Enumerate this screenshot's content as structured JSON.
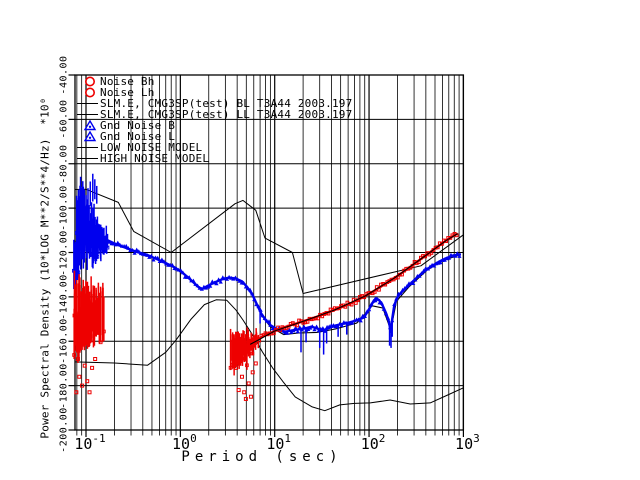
{
  "colors": {
    "blue": "#0000ee",
    "red": "#ee0000",
    "grid": "#000000",
    "background": "#ffffff"
  },
  "legend": {
    "items": [
      {
        "symbol": "red-circle",
        "label": "Noise Bh"
      },
      {
        "symbol": "red-circle",
        "label": "Noise Lh"
      },
      {
        "symbol": "black-line",
        "label": "SLM.E, CMG3SP(test) BL T3A44 2003.197"
      },
      {
        "symbol": "black-line",
        "label": "SLM.E, CMG3SP(test) LL T3A44 2003.197"
      },
      {
        "symbol": "blue-triangle",
        "label": "Gnd Noise B"
      },
      {
        "symbol": "blue-triangle",
        "label": "Gnd Noise L"
      },
      {
        "symbol": "black-line",
        "label": "LOW NOISE MODEL"
      },
      {
        "symbol": "black-line",
        "label": "HIGH NOISE MODEL"
      }
    ]
  },
  "axes": {
    "x": {
      "label": "Period (sec)",
      "scale": "log",
      "ticks": [
        {
          "base": "10",
          "exp": "-1"
        },
        {
          "base": "10",
          "exp": "0"
        },
        {
          "base": "10",
          "exp": "1"
        },
        {
          "base": "10",
          "exp": "2"
        },
        {
          "base": "10",
          "exp": "3"
        }
      ]
    },
    "y": {
      "label": "Power Spectral Density (10*LOG M**2/S**4/Hz)  *10⁰",
      "tick_labels": [
        "-40.00",
        "-60.00",
        "-80.00",
        "-100.00",
        "-120.00",
        "-140.00",
        "-160.00",
        "-180.00",
        "-200.00"
      ]
    }
  },
  "chart_data": {
    "type": "scatter",
    "title": "",
    "xlabel": "Period (sec)",
    "ylabel": "Power Spectral Density (10*LOG M**2/S**4/Hz) *10^0",
    "xscale": "log",
    "xlim": [
      0.0757,
      1000
    ],
    "ylim": [
      -200,
      -40
    ],
    "grid": "full log grid, horizontal lines every 20 dB",
    "legend_position": "top-left inside plot",
    "series": [
      {
        "name": "Gnd Noise B",
        "color": "#0000ee",
        "marker": "triangle",
        "style": "band",
        "points": [
          [
            0.082,
            -104
          ],
          [
            0.09,
            -107
          ],
          [
            0.1,
            -109
          ],
          [
            0.115,
            -111
          ],
          [
            0.135,
            -112.5
          ],
          [
            0.16,
            -114
          ],
          [
            0.19,
            -115.5
          ],
          [
            0.23,
            -117
          ],
          [
            0.28,
            -118.3
          ],
          [
            0.35,
            -119.8
          ],
          [
            0.44,
            -121
          ],
          [
            0.55,
            -122.8
          ],
          [
            0.68,
            -124.5
          ],
          [
            0.85,
            -126.5
          ],
          [
            1.05,
            -129
          ],
          [
            1.3,
            -132.5
          ],
          [
            1.55,
            -135.5
          ],
          [
            1.7,
            -136.5
          ],
          [
            1.95,
            -135
          ],
          [
            2.3,
            -133.5
          ],
          [
            2.8,
            -132
          ],
          [
            3.3,
            -131.3
          ],
          [
            3.9,
            -131.8
          ],
          [
            4.5,
            -133
          ],
          [
            5.1,
            -135.5
          ],
          [
            5.8,
            -139
          ],
          [
            6.5,
            -143.5
          ],
          [
            7.2,
            -147.5
          ],
          [
            8.2,
            -151
          ],
          [
            9.0,
            -152.5
          ]
        ]
      },
      {
        "name": "Gnd Noise L",
        "color": "#0000ee",
        "marker": "triangle",
        "style": "band",
        "points": [
          [
            9,
            -152.7
          ],
          [
            10.5,
            -154.5
          ],
          [
            12.5,
            -155.8
          ],
          [
            15,
            -155.2
          ],
          [
            18,
            -154.6
          ],
          [
            21,
            -154.2
          ],
          [
            24.5,
            -153.4
          ],
          [
            28,
            -154.2
          ],
          [
            32,
            -155.2
          ],
          [
            37,
            -154.2
          ],
          [
            44,
            -152.9
          ],
          [
            52,
            -152.2
          ],
          [
            62,
            -151.5
          ],
          [
            74,
            -150.6
          ],
          [
            88,
            -149.3
          ],
          [
            97,
            -146.5
          ],
          [
            108,
            -143
          ],
          [
            118,
            -140.6
          ],
          [
            128,
            -141.5
          ],
          [
            140,
            -144
          ],
          [
            152,
            -147.5
          ],
          [
            162,
            -151
          ],
          [
            170,
            -155.8
          ],
          [
            176,
            -150
          ],
          [
            184,
            -144.5
          ],
          [
            195,
            -141
          ],
          [
            210,
            -138.8
          ],
          [
            235,
            -136.8
          ],
          [
            265,
            -134.8
          ],
          [
            305,
            -132.2
          ],
          [
            355,
            -129.7
          ],
          [
            410,
            -127.6
          ],
          [
            470,
            -125.9
          ],
          [
            545,
            -124.3
          ],
          [
            630,
            -122.9
          ],
          [
            730,
            -121.8
          ],
          [
            840,
            -121.1
          ],
          [
            940,
            -120.8
          ]
        ]
      },
      {
        "name": "Noise Bh",
        "color": "#ee0000",
        "marker": "square",
        "style": "fuzz",
        "points": [
          [
            0.08,
            -141
          ],
          [
            0.09,
            -144
          ],
          [
            0.1,
            -146
          ],
          [
            0.11,
            -147
          ],
          [
            0.12,
            -146.5
          ],
          [
            0.135,
            -145
          ],
          [
            0.15,
            -143.5
          ]
        ]
      },
      {
        "name": "Noise Lh",
        "color": "#ee0000",
        "marker": "square",
        "style": "band",
        "points": [
          [
            3.7,
            -166.5
          ],
          [
            4.2,
            -164.8
          ],
          [
            4.8,
            -163.3
          ],
          [
            5.5,
            -161.4
          ],
          [
            6.3,
            -159.6
          ],
          [
            7.3,
            -158.1
          ],
          [
            8.5,
            -156.8
          ],
          [
            10,
            -155.4
          ],
          [
            12,
            -154
          ],
          [
            14.5,
            -152.9
          ],
          [
            17.5,
            -151.8
          ],
          [
            21,
            -150.7
          ],
          [
            25,
            -149.7
          ],
          [
            30,
            -148.5
          ],
          [
            36,
            -147.2
          ],
          [
            43,
            -145.9
          ],
          [
            52,
            -144.5
          ],
          [
            63,
            -143
          ],
          [
            76,
            -141.4
          ],
          [
            91,
            -139.6
          ],
          [
            109,
            -137.7
          ],
          [
            130,
            -135.7
          ],
          [
            156,
            -133.6
          ],
          [
            187,
            -131.4
          ],
          [
            224,
            -129.1
          ],
          [
            268,
            -126.8
          ],
          [
            321,
            -124.3
          ],
          [
            385,
            -121.8
          ],
          [
            461,
            -119.3
          ],
          [
            552,
            -116.9
          ],
          [
            661,
            -114.5
          ],
          [
            792,
            -112.4
          ],
          [
            870,
            -111.5
          ]
        ]
      },
      {
        "name": "SLM.E, CMG3SP(test) BL T3A44 2003.197",
        "color": "#000000",
        "style": "line",
        "width": 1.1,
        "points": [
          [
            7,
            -147.5
          ],
          [
            9,
            -153.5
          ],
          [
            12.5,
            -157
          ],
          [
            18,
            -156.3
          ],
          [
            28,
            -156
          ],
          [
            44,
            -154.5
          ],
          [
            74,
            -151.8
          ],
          [
            108,
            -144
          ],
          [
            140,
            -145
          ],
          [
            170,
            -155
          ],
          [
            195,
            -142
          ],
          [
            265,
            -135.5
          ],
          [
            410,
            -128
          ],
          [
            630,
            -123.3
          ],
          [
            940,
            -121
          ]
        ]
      },
      {
        "name": "SLM.E, CMG3SP(test) LL T3A44 2003.197",
        "color": "#000000",
        "style": "line",
        "width": 1.1,
        "points": [
          [
            5.5,
            -161.4
          ],
          [
            10,
            -155.4
          ],
          [
            21,
            -150.7
          ],
          [
            43,
            -145.9
          ],
          [
            91,
            -139.6
          ],
          [
            187,
            -131.4
          ],
          [
            385,
            -121.8
          ],
          [
            661,
            -114.5
          ],
          [
            870,
            -111.5
          ]
        ]
      },
      {
        "name": "LOW NOISE MODEL",
        "color": "#000000",
        "style": "line",
        "width": 1,
        "points": [
          [
            0.0757,
            -169.3
          ],
          [
            0.2,
            -169.8
          ],
          [
            0.45,
            -170.8
          ],
          [
            0.7,
            -165
          ],
          [
            0.9,
            -159.5
          ],
          [
            1.3,
            -150
          ],
          [
            1.8,
            -143.5
          ],
          [
            2.4,
            -141.3
          ],
          [
            3.1,
            -141.5
          ],
          [
            3.9,
            -146
          ],
          [
            4.6,
            -150.4
          ],
          [
            6,
            -158
          ],
          [
            7.4,
            -164.8
          ],
          [
            9.5,
            -172
          ],
          [
            12.3,
            -178.3
          ],
          [
            16.5,
            -185.1
          ],
          [
            25,
            -189.6
          ],
          [
            34,
            -191.3
          ],
          [
            49,
            -188.7
          ],
          [
            70,
            -188
          ],
          [
            103,
            -187.8
          ],
          [
            167,
            -186.5
          ],
          [
            273,
            -188.3
          ],
          [
            445,
            -187.8
          ],
          [
            700,
            -184
          ],
          [
            1000,
            -181
          ]
        ]
      },
      {
        "name": "HIGH NOISE MODEL",
        "color": "#000000",
        "style": "line",
        "width": 1,
        "points": [
          [
            0.0757,
            -91.6
          ],
          [
            0.1,
            -91.5
          ],
          [
            0.22,
            -97.4
          ],
          [
            0.32,
            -110.5
          ],
          [
            0.8,
            -120
          ],
          [
            3.8,
            -98
          ],
          [
            4.6,
            -96.5
          ],
          [
            6.3,
            -101
          ],
          [
            7.9,
            -113.5
          ],
          [
            15.4,
            -120
          ],
          [
            20,
            -138.5
          ],
          [
            354.8,
            -126
          ],
          [
            1000,
            -112
          ]
        ]
      }
    ],
    "clusters": [
      {
        "series": "Gnd Noise B",
        "color": "#0000ee",
        "t": [
          0.0757,
          0.082
        ],
        "center": [
          -124,
          -124
        ],
        "up": [
          11,
          11
        ],
        "down": [
          13,
          13
        ],
        "n": 10
      },
      {
        "series": "Gnd Noise B",
        "color": "#0000ee",
        "t": [
          0.08,
          0.17
        ],
        "center": [
          -106,
          -114.5
        ],
        "up": [
          22,
          4
        ],
        "down": [
          26,
          6
        ],
        "n": 55
      },
      {
        "series": "Gnd Noise B",
        "color": "#0000ee",
        "t": [
          0.084,
          0.105
        ],
        "center": [
          -103,
          -106
        ],
        "up": [
          9,
          7
        ],
        "down": [
          18,
          14
        ],
        "n": 25
      },
      {
        "series": "Noise Bh",
        "color": "#ee0000",
        "t": [
          0.076,
          0.155
        ],
        "center": [
          -145,
          -147
        ],
        "up": [
          16,
          12
        ],
        "down": [
          23,
          14
        ],
        "n": 60
      },
      {
        "series": "Noise Bh",
        "color": "#ee0000",
        "t": [
          0.076,
          0.12
        ],
        "center": [
          -152,
          -150
        ],
        "up": [
          8,
          6
        ],
        "down": [
          20,
          12
        ],
        "n": 25
      },
      {
        "series": "Noise Lh",
        "color": "#ee0000",
        "t": [
          3.4,
          6.6
        ],
        "center": [
          -162,
          -159.5
        ],
        "up": [
          7,
          4
        ],
        "down": [
          13,
          5
        ],
        "n": 45
      },
      {
        "series": "Noise Lh",
        "color": "#ee0000",
        "t": [
          3.6,
          5.2
        ],
        "center": [
          -166,
          -164
        ],
        "up": [
          5,
          4
        ],
        "down": [
          10,
          8
        ],
        "n": 20
      }
    ],
    "spikes": [
      {
        "color": "#0000ee",
        "t": 0.118,
        "from": -97,
        "to": -84.5
      },
      {
        "color": "#0000ee",
        "t": 0.111,
        "from": -99,
        "to": -88
      },
      {
        "color": "#0000ee",
        "t": 0.124,
        "from": -96,
        "to": -87
      },
      {
        "color": "#0000ee",
        "t": 0.13,
        "from": -98,
        "to": -90
      },
      {
        "color": "#0000ee",
        "t": 0.105,
        "from": -100,
        "to": -91
      },
      {
        "color": "#0000ee",
        "t": 19,
        "from": -154.6,
        "to": -165
      },
      {
        "color": "#0000ee",
        "t": 21.5,
        "from": -154.2,
        "to": -160.5
      },
      {
        "color": "#0000ee",
        "t": 30,
        "from": -155,
        "to": -163
      },
      {
        "color": "#0000ee",
        "t": 33,
        "from": -155.4,
        "to": -166
      },
      {
        "color": "#0000ee",
        "t": 35.5,
        "from": -154.8,
        "to": -161
      },
      {
        "color": "#0000ee",
        "t": 47,
        "from": -152.7,
        "to": -158
      },
      {
        "color": "#0000ee",
        "t": 58,
        "from": -151.8,
        "to": -157
      },
      {
        "color": "#0000ee",
        "t": 7.0,
        "from": -146,
        "to": -152
      },
      {
        "color": "#0000ee",
        "t": 165,
        "from": -152,
        "to": -162
      },
      {
        "color": "#0000ee",
        "t": 171,
        "from": -156,
        "to": -163
      },
      {
        "color": "#0000ee",
        "t": 176,
        "from": -150,
        "to": -158
      }
    ],
    "outlier_squares": [
      {
        "color": "#ee0000",
        "t": 0.079,
        "db": -183
      },
      {
        "color": "#ee0000",
        "t": 0.085,
        "db": -176
      },
      {
        "color": "#ee0000",
        "t": 0.091,
        "db": -180
      },
      {
        "color": "#ee0000",
        "t": 0.097,
        "db": -171
      },
      {
        "color": "#ee0000",
        "t": 0.103,
        "db": -178
      },
      {
        "color": "#ee0000",
        "t": 0.109,
        "db": -183
      },
      {
        "color": "#ee0000",
        "t": 0.116,
        "db": -172
      },
      {
        "color": "#ee0000",
        "t": 0.125,
        "db": -168
      },
      {
        "color": "#ee0000",
        "t": 0.082,
        "db": -168
      },
      {
        "color": "#ee0000",
        "t": 0.088,
        "db": -163
      },
      {
        "color": "#ee0000",
        "t": 3.9,
        "db": -172
      },
      {
        "color": "#ee0000",
        "t": 4.15,
        "db": -182
      },
      {
        "color": "#ee0000",
        "t": 4.5,
        "db": -176
      },
      {
        "color": "#ee0000",
        "t": 4.95,
        "db": -186
      },
      {
        "color": "#ee0000",
        "t": 5.3,
        "db": -179
      },
      {
        "color": "#ee0000",
        "t": 5.85,
        "db": -174
      },
      {
        "color": "#ee0000",
        "t": 6.3,
        "db": -170
      },
      {
        "color": "#ee0000",
        "t": 4.75,
        "db": -183
      },
      {
        "color": "#ee0000",
        "t": 4.3,
        "db": -169
      },
      {
        "color": "#ee0000",
        "t": 5.6,
        "db": -185
      }
    ]
  }
}
